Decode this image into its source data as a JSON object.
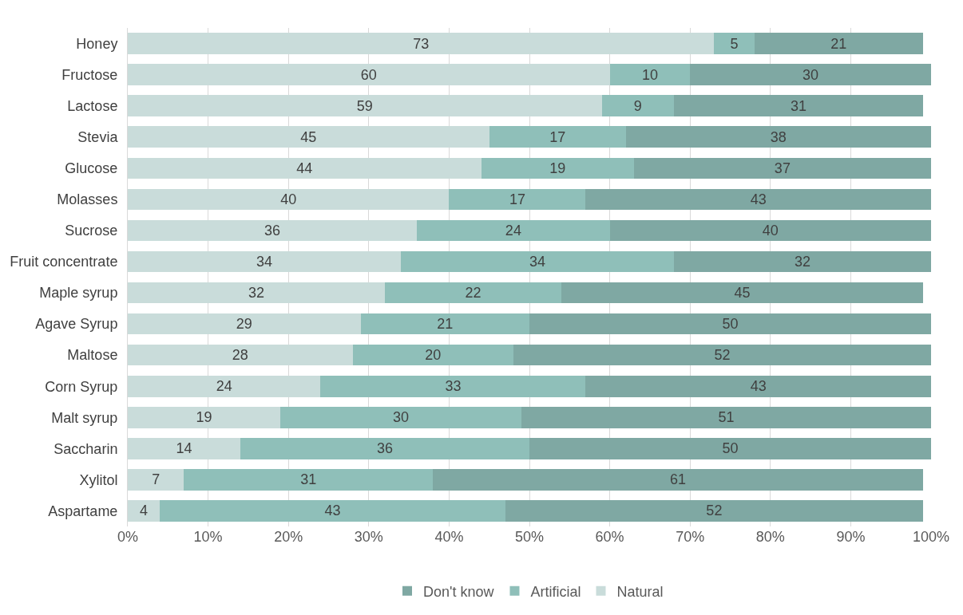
{
  "chart_data": {
    "type": "bar",
    "orientation": "horizontal",
    "stacked": true,
    "data_labels": true,
    "grid": "x",
    "legend": "bottom",
    "categories": [
      "Honey",
      "Fructose",
      "Lactose",
      "Stevia",
      "Glucose",
      "Molasses",
      "Sucrose",
      "Fruit concentrate",
      "Maple syrup",
      "Agave Syrup",
      "Maltose",
      "Corn Syrup",
      "Malt syrup",
      "Saccharin",
      "Xylitol",
      "Aspartame"
    ],
    "series": [
      {
        "name": "Natural",
        "color": "#c9dcda",
        "values": [
          73,
          60,
          59,
          45,
          44,
          40,
          36,
          34,
          32,
          29,
          28,
          24,
          19,
          14,
          7,
          4
        ]
      },
      {
        "name": "Artificial",
        "color": "#8fbfb9",
        "values": [
          5,
          10,
          9,
          17,
          19,
          17,
          24,
          34,
          22,
          21,
          20,
          33,
          30,
          36,
          31,
          43
        ]
      },
      {
        "name": "Don't know",
        "color": "#7fa8a3",
        "values": [
          21,
          30,
          31,
          38,
          37,
          43,
          40,
          32,
          45,
          50,
          52,
          43,
          51,
          50,
          61,
          52
        ]
      }
    ],
    "xlim": [
      0,
      100
    ],
    "xticks": [
      {
        "value": 0,
        "label": "0%"
      },
      {
        "value": 10,
        "label": "10%"
      },
      {
        "value": 20,
        "label": "20%"
      },
      {
        "value": 30,
        "label": "30%"
      },
      {
        "value": 40,
        "label": "40%"
      },
      {
        "value": 50,
        "label": "50%"
      },
      {
        "value": 60,
        "label": "60%"
      },
      {
        "value": 70,
        "label": "70%"
      },
      {
        "value": 80,
        "label": "80%"
      },
      {
        "value": 90,
        "label": "90%"
      },
      {
        "value": 100,
        "label": "100%"
      }
    ]
  }
}
